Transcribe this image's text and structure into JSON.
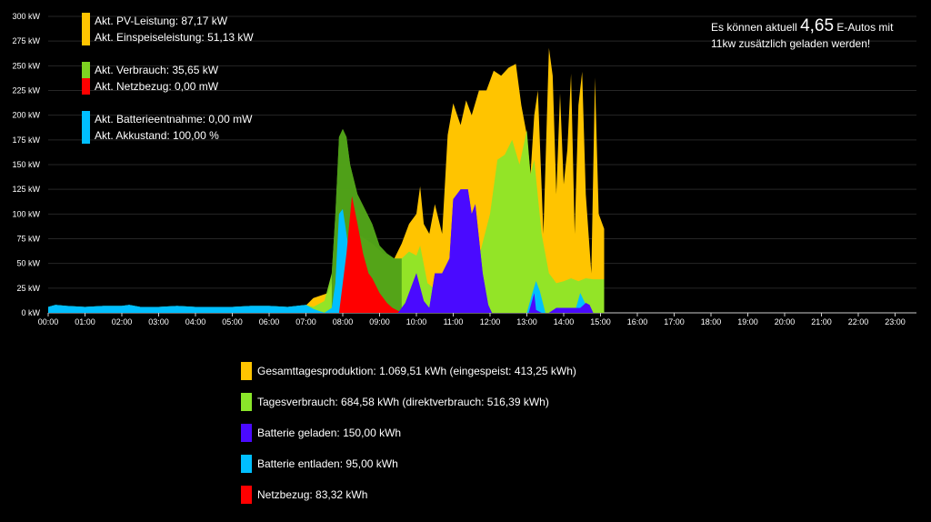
{
  "legend_top": {
    "pv_power": {
      "label": "Akt. PV-Leistung: 87,17 kW",
      "color": "#ffc400"
    },
    "feed_in": {
      "label": "Akt. Einspeiseleistung: 51,13 kW",
      "color": "#ffc400"
    },
    "consumption": {
      "label": "Akt. Verbrauch: 35,65 kW",
      "color": "#7ed321"
    },
    "grid_draw": {
      "label": "Akt. Netzbezug: 0,00 mW",
      "color": "#ff0000"
    },
    "battery_draw": {
      "label": "Akt. Batterieentnahme: 0,00 mW",
      "color": "#00bfff"
    },
    "battery_level": {
      "label": "Akt. Akkustand: 100,00 %",
      "color": "#00bfff"
    }
  },
  "info": {
    "prefix": "Es können aktuell",
    "value": "4,65",
    "suffix": "E-Autos mit",
    "line2": "11kw zusätzlich geladen werden!"
  },
  "legend_bottom": [
    {
      "label": "Gesamttagesproduktion: 1.069,51 kWh (eingespeist: 413,25 kWh)",
      "color": "#ffc400"
    },
    {
      "label": "Tagesverbrauch: 684,58 kWh (direktverbrauch: 516,39 kWh)",
      "color": "#8ae62a"
    },
    {
      "label": "Batterie geladen: 150,00 kWh",
      "color": "#4a0aff"
    },
    {
      "label": "Batterie entladen: 95,00 kWh",
      "color": "#00bfff"
    },
    {
      "label": "Netzbezug: 83,32 kWh",
      "color": "#ff0000"
    }
  ],
  "chart_data": {
    "type": "area",
    "ylim": [
      0,
      300
    ],
    "yticks": [
      0,
      25,
      50,
      75,
      100,
      125,
      150,
      175,
      200,
      225,
      250,
      275,
      300
    ],
    "ytick_labels": [
      "0 kW",
      "25 kW",
      "50 kW",
      "75 kW",
      "100 kW",
      "125 kW",
      "150 kW",
      "175 kW",
      "200 kW",
      "225 kW",
      "250 kW",
      "275 kW",
      "300 kW"
    ],
    "xlim": [
      0,
      24
    ],
    "xticks": [
      "00:00",
      "01:00",
      "02:00",
      "03:00",
      "04:00",
      "05:00",
      "06:00",
      "07:00",
      "08:00",
      "09:00",
      "10:00",
      "11:00",
      "12:00",
      "13:00",
      "14:00",
      "15:00",
      "16:00",
      "17:00",
      "18:00",
      "19:00",
      "20:00",
      "21:00",
      "22:00",
      "23:00"
    ],
    "grid": true,
    "series": [
      {
        "id": "pv",
        "color": "#ffc400",
        "x": [
          6.8,
          7.2,
          7.6,
          8.0,
          8.4,
          8.8,
          9.1,
          9.4,
          9.6,
          9.8,
          10.0,
          10.1,
          10.2,
          10.35,
          10.5,
          10.7,
          10.85,
          11.0,
          11.2,
          11.35,
          11.5,
          11.7,
          11.9,
          12.1,
          12.3,
          12.5,
          12.7,
          12.85,
          13.0,
          13.1,
          13.2,
          13.3,
          13.45,
          13.6,
          13.7,
          13.8,
          13.9,
          14.0,
          14.1,
          14.2,
          14.3,
          14.4,
          14.5,
          14.6,
          14.75,
          14.85,
          14.95,
          15.1
        ],
        "y": [
          0,
          15,
          20,
          60,
          80,
          70,
          60,
          55,
          70,
          90,
          100,
          128,
          90,
          80,
          110,
          80,
          180,
          212,
          190,
          215,
          200,
          225,
          225,
          245,
          240,
          248,
          252,
          210,
          180,
          140,
          200,
          225,
          80,
          268,
          240,
          120,
          222,
          130,
          165,
          242,
          80,
          210,
          244,
          120,
          40,
          238,
          100,
          85
        ]
      },
      {
        "id": "consumption",
        "color": "#8ae62a",
        "x": [
          0,
          0.2,
          0.5,
          1.0,
          1.5,
          2.0,
          2.2,
          2.5,
          3.0,
          3.5,
          4.0,
          4.5,
          5.0,
          5.5,
          6.0,
          6.5,
          7.0,
          7.2,
          7.5,
          7.7,
          7.8,
          7.9,
          8.0,
          8.1,
          8.2,
          8.4,
          8.6,
          8.8,
          9.0,
          9.2,
          9.4,
          9.6,
          9.8,
          10.0,
          10.1,
          10.3,
          10.5,
          11.0,
          11.5,
          12.0,
          12.2,
          12.4,
          12.6,
          12.8,
          13.0,
          13.1,
          13.2,
          13.4,
          13.6,
          13.8,
          14.0,
          14.2,
          14.4,
          14.6,
          14.8,
          15.0,
          15.1
        ],
        "y": [
          6,
          8,
          7,
          6,
          7,
          7,
          8,
          6,
          6,
          7,
          6,
          6,
          6,
          7,
          7,
          6,
          8,
          6,
          12,
          40,
          100,
          178,
          186,
          178,
          150,
          120,
          105,
          90,
          68,
          60,
          55,
          55,
          62,
          58,
          68,
          30,
          24,
          24,
          28,
          100,
          155,
          160,
          175,
          150,
          185,
          140,
          155,
          80,
          40,
          30,
          32,
          35,
          32,
          35,
          34,
          34,
          34
        ]
      },
      {
        "id": "battery_charged",
        "color": "#4a0aff",
        "x": [
          9.2,
          9.5,
          9.7,
          9.9,
          10.0,
          10.2,
          10.35,
          10.5,
          10.7,
          10.9,
          11.0,
          11.2,
          11.4,
          11.5,
          11.6,
          11.8,
          11.95,
          12.05,
          12.2,
          13.05,
          13.2,
          13.25,
          13.4,
          13.6,
          13.8,
          14.0,
          14.2,
          14.45,
          14.6,
          14.7,
          14.8
        ],
        "y": [
          0,
          0,
          10,
          30,
          40,
          12,
          5,
          40,
          40,
          55,
          115,
          125,
          125,
          100,
          110,
          40,
          8,
          0,
          0,
          0,
          20,
          3,
          0,
          0,
          5,
          5,
          5,
          5,
          10,
          8,
          0
        ]
      },
      {
        "id": "battery_discharged",
        "color": "#00bfff",
        "x": [
          0,
          0.2,
          0.5,
          1.0,
          1.5,
          2.0,
          2.2,
          2.5,
          3.0,
          3.5,
          4.0,
          4.5,
          5.0,
          5.5,
          6.0,
          6.5,
          7.0,
          7.2,
          7.5,
          7.7,
          7.8,
          7.9,
          8.0,
          8.1,
          8.2,
          8.35,
          8.5,
          8.6,
          9.7,
          9.9,
          10.0,
          10.1,
          10.3,
          13.0,
          13.15,
          13.25,
          13.35,
          13.5,
          14.3,
          14.45,
          14.55,
          14.7
        ],
        "y": [
          6,
          8,
          7,
          6,
          7,
          7,
          8,
          6,
          6,
          7,
          6,
          6,
          6,
          7,
          7,
          6,
          8,
          4,
          0,
          5,
          30,
          100,
          105,
          80,
          55,
          30,
          10,
          0,
          0,
          15,
          25,
          5,
          0,
          0,
          20,
          32,
          22,
          0,
          0,
          20,
          12,
          0
        ]
      },
      {
        "id": "grid",
        "color": "#ff0000",
        "x": [
          7.9,
          8.1,
          8.25,
          8.4,
          8.55,
          8.7,
          8.8,
          9.0,
          9.2,
          9.35,
          9.5,
          9.6
        ],
        "y": [
          0,
          60,
          118,
          90,
          60,
          40,
          35,
          20,
          10,
          5,
          2,
          0
        ]
      }
    ]
  }
}
